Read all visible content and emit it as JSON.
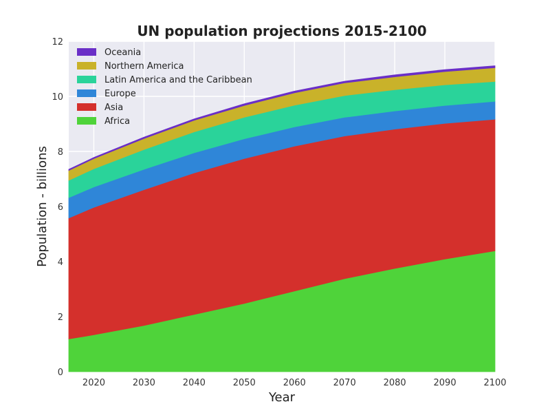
{
  "chart_data": {
    "type": "area",
    "stacked": true,
    "title": "UN population projections 2015-2100",
    "xlabel": "Year",
    "ylabel": "Population - billions",
    "xlim": [
      2015,
      2100
    ],
    "ylim": [
      0,
      12
    ],
    "xticks": [
      2020,
      2030,
      2040,
      2050,
      2060,
      2070,
      2080,
      2090,
      2100
    ],
    "yticks": [
      0,
      2,
      4,
      6,
      8,
      10,
      12
    ],
    "grid": true,
    "legend_position": "top-left",
    "x": [
      2015,
      2020,
      2030,
      2040,
      2050,
      2060,
      2070,
      2080,
      2090,
      2100
    ],
    "legend": [
      {
        "name": "Oceania",
        "color": "#6a2fc7"
      },
      {
        "name": "Northern America",
        "color": "#c9b22a"
      },
      {
        "name": "Latin America and the Caribbean",
        "color": "#2ad39a"
      },
      {
        "name": "Europe",
        "color": "#2f86d8"
      },
      {
        "name": "Asia",
        "color": "#d4302c"
      },
      {
        "name": "Africa",
        "color": "#4fd33a"
      }
    ],
    "series": [
      {
        "name": "Africa",
        "color": "#4fd33a",
        "values": [
          1.19,
          1.34,
          1.68,
          2.08,
          2.48,
          2.93,
          3.38,
          3.75,
          4.09,
          4.39
        ]
      },
      {
        "name": "Asia",
        "color": "#d4302c",
        "values": [
          4.39,
          4.63,
          4.93,
          5.14,
          5.26,
          5.26,
          5.18,
          5.06,
          4.93,
          4.78
        ]
      },
      {
        "name": "Europe",
        "color": "#2f86d8",
        "values": [
          0.74,
          0.74,
          0.74,
          0.73,
          0.72,
          0.7,
          0.68,
          0.66,
          0.65,
          0.65
        ]
      },
      {
        "name": "Latin America and the Caribbean",
        "color": "#2ad39a",
        "values": [
          0.63,
          0.66,
          0.72,
          0.76,
          0.78,
          0.79,
          0.79,
          0.77,
          0.75,
          0.72
        ]
      },
      {
        "name": "Northern America",
        "color": "#c9b22a",
        "values": [
          0.36,
          0.37,
          0.4,
          0.42,
          0.43,
          0.45,
          0.46,
          0.47,
          0.48,
          0.5
        ]
      },
      {
        "name": "Oceania",
        "color": "#6a2fc7",
        "values": [
          0.04,
          0.04,
          0.05,
          0.05,
          0.06,
          0.06,
          0.06,
          0.07,
          0.07,
          0.07
        ]
      }
    ]
  }
}
